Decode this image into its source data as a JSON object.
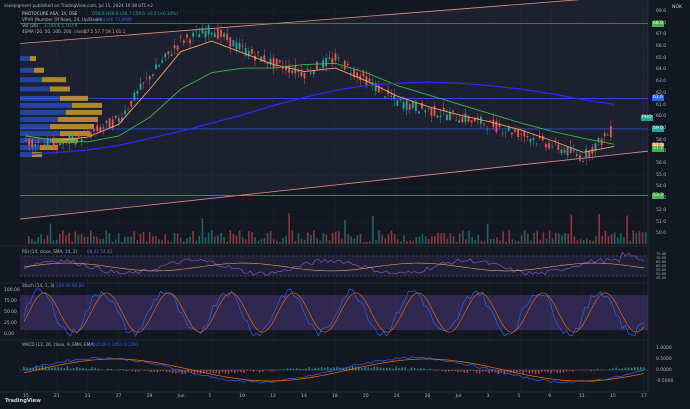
{
  "header": {
    "published_by": "savepigment published on TradingView.com, Jul 15, 2024 10:38 UTC+2",
    "symbol_line": "PHOTOCURE ASA, 1h, OSE",
    "ohlc": "O58.8 H59.0 L58.7 C59.0 +0.2 (+0.34%)",
    "vpvr": "VPVR (Number Of Rows, 24, Up/Down)",
    "vpvr_values": "30.444K  73.898K",
    "vol": "Vol (20)",
    "vol_values": "3.744 K  5.107 K",
    "ma4": "4EMA (20, 50, 100, 200, close)",
    "ma4_values": "57.5  57.7  59.1  61.1",
    "currency": "NOK"
  },
  "colors": {
    "bg": "#131722",
    "grid": "#1e222d",
    "axis_text": "#b2b5be",
    "up": "#26a69a",
    "down": "#ef5350",
    "ema20": "#f7a35c",
    "ema50": "#3bb54a",
    "ema100": "#c8a000",
    "ema200": "#2b2bff",
    "channel": "#e8908a",
    "hline_blue": "#2962ff",
    "hline_green": "#4caf50",
    "vpvr_up": "#2962ff",
    "vpvr_down": "#f0b429",
    "rsi": "#7e57c2",
    "stoch_k": "#2962ff",
    "stoch_d": "#ff6d00",
    "macd": "#2962ff",
    "signal": "#ff6d00"
  },
  "price_axis": {
    "labels": [
      "69.0",
      "68.0",
      "67.0",
      "66.0",
      "65.0",
      "64.0",
      "63.0",
      "62.0",
      "61.0",
      "60.0",
      "59.0",
      "58.0",
      "57.0",
      "56.0",
      "55.0",
      "54.0",
      "53.0",
      "52.0",
      "51.0",
      "50.0"
    ],
    "badges": [
      {
        "text": "68.0",
        "color": "#4caf50"
      },
      {
        "text": "61.6",
        "color": "#2962ff"
      },
      {
        "text": "59.0",
        "color": "#26a69a"
      },
      {
        "text": "PHO",
        "color": "#26a69a"
      },
      {
        "text": "57.5",
        "color": "#f7a35c"
      },
      {
        "text": "57.7",
        "color": "#3bb54a"
      },
      {
        "text": "53.3",
        "color": "#4caf50"
      }
    ]
  },
  "x_axis": {
    "labels": [
      "15",
      "21",
      "23",
      "27",
      "29",
      "Jun",
      "5",
      "10",
      "12",
      "14",
      "18",
      "20",
      "24",
      "26",
      "Jul",
      "3",
      "5",
      "9",
      "11",
      "15",
      "17"
    ]
  },
  "rsi": {
    "label": "RSI (14, close, SMA, 14, 2)",
    "values": "68.42  54.82",
    "axis": [
      "75.00",
      "70.00",
      "65.00",
      "60.00",
      "55.00",
      "50.00",
      "45.00"
    ]
  },
  "stoch": {
    "label": "Stoch (14, 1, 3)",
    "values": "100.00  94.84",
    "axis": [
      "100.00",
      "75.00",
      "50.00",
      "25.00",
      "0.00"
    ]
  },
  "macd": {
    "label": "MACD (12, 26, close, 9, EMA, EMA)",
    "values": "0.2149  0.3453  0.1291",
    "axis": [
      "1.0000",
      "0.5000",
      "0.0000",
      "-0.5000"
    ]
  },
  "branding": {
    "logo": "TradingView"
  },
  "chart_data": {
    "type": "line",
    "title": "PHOTOCURE ASA, 1h, OSE",
    "ylabel": "NOK",
    "ylim": [
      49,
      69.5
    ],
    "x": [
      "May 15",
      "May 21",
      "May 23",
      "May 27",
      "May 29",
      "Jun 1",
      "Jun 5",
      "Jun 10",
      "Jun 12",
      "Jun 14",
      "Jun 18",
      "Jun 20",
      "Jun 24",
      "Jun 26",
      "Jul 1",
      "Jul 3",
      "Jul 5",
      "Jul 9",
      "Jul 11",
      "Jul 15"
    ],
    "series": [
      {
        "name": "Close",
        "values": [
          58.0,
          57.6,
          58.5,
          59.8,
          63.5,
          66.5,
          67.5,
          65.8,
          64.6,
          63.8,
          65.0,
          63.2,
          61.3,
          60.6,
          60.0,
          59.4,
          58.6,
          57.6,
          56.6,
          59.0
        ]
      },
      {
        "name": "EMA 20",
        "values": [
          58.4,
          58.0,
          58.3,
          59.4,
          62.4,
          65.6,
          66.5,
          65.5,
          64.5,
          63.9,
          64.2,
          63.1,
          61.8,
          60.9,
          60.2,
          59.6,
          58.9,
          58.0,
          57.0,
          57.5
        ]
      },
      {
        "name": "EMA 50",
        "values": [
          58.4,
          58.0,
          57.9,
          58.4,
          60.0,
          62.4,
          63.8,
          64.2,
          64.2,
          64.5,
          64.6,
          63.8,
          62.7,
          61.9,
          61.1,
          60.3,
          59.5,
          58.8,
          58.2,
          57.7
        ]
      },
      {
        "name": "EMA 200",
        "values": [
          56.8,
          57.0,
          57.2,
          57.6,
          58.2,
          58.8,
          59.5,
          60.2,
          61.0,
          61.7,
          62.3,
          62.7,
          62.9,
          63.0,
          62.9,
          62.7,
          62.4,
          62.0,
          61.5,
          61.1
        ]
      }
    ],
    "horizontal_levels": [
      68.0,
      61.6,
      59.0,
      53.3
    ],
    "volume_k": [
      4,
      3,
      5,
      6,
      5,
      9,
      12,
      7,
      5,
      4,
      5,
      6,
      5,
      4,
      4,
      5,
      4,
      5,
      6,
      5
    ]
  }
}
